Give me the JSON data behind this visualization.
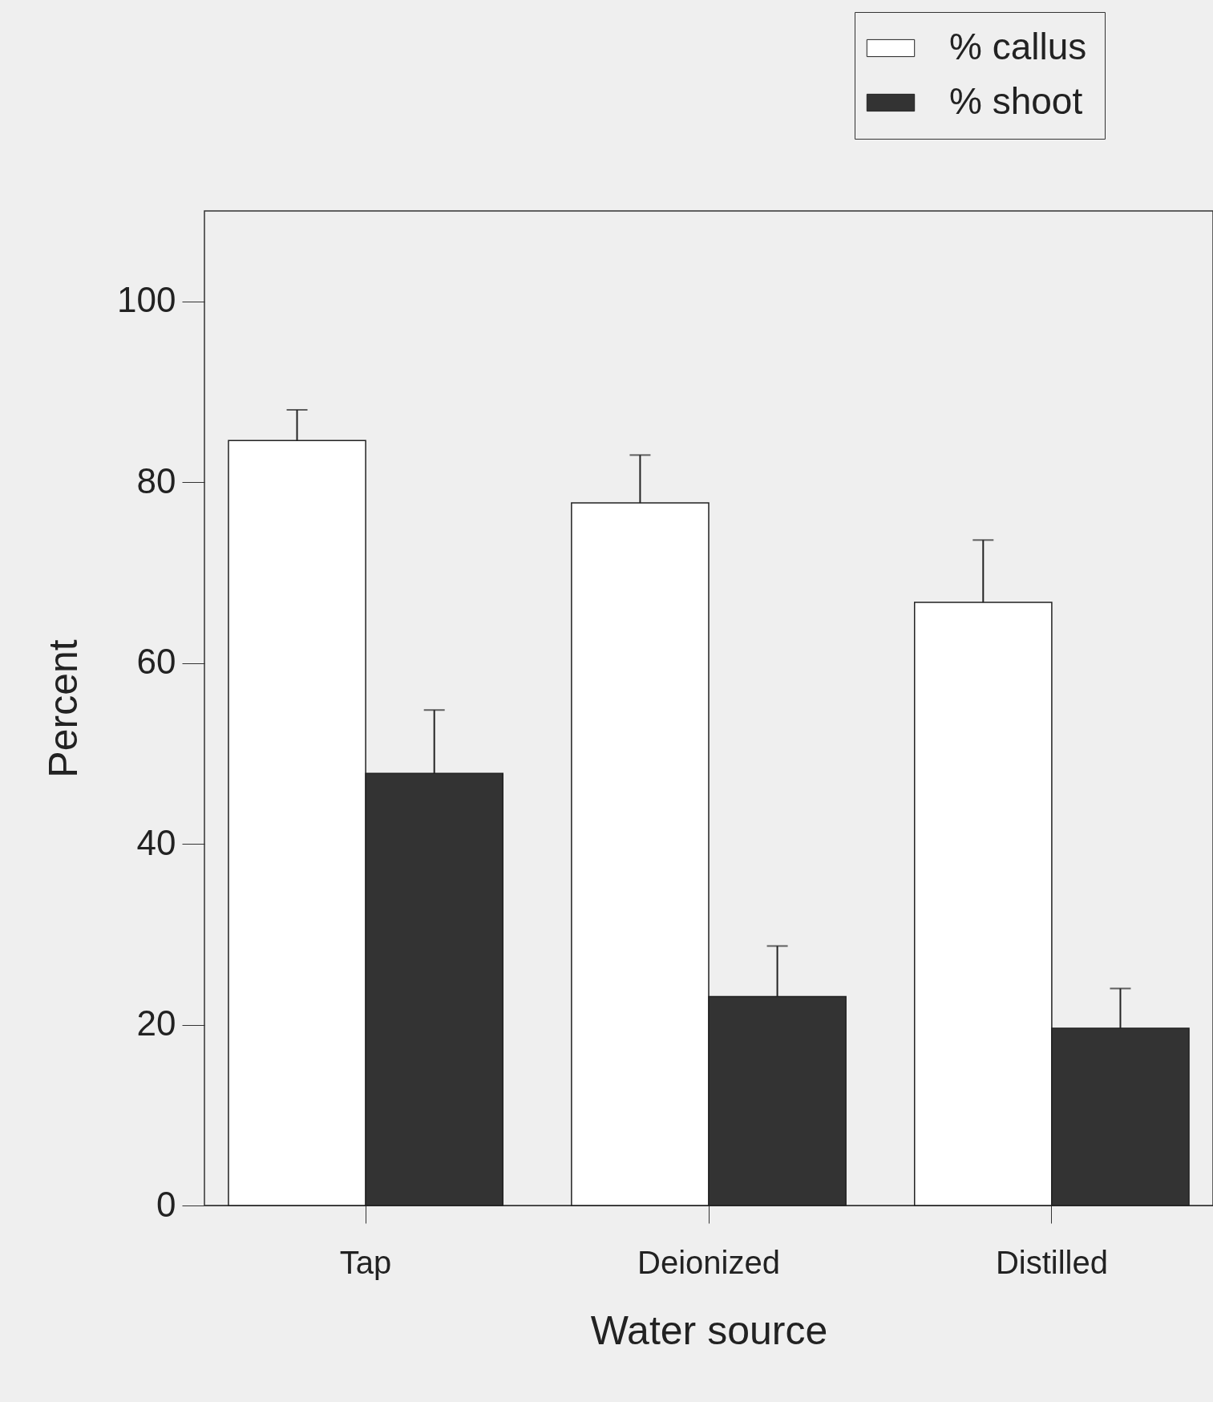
{
  "chart_data": {
    "type": "bar",
    "xlabel": "Water source",
    "ylabel": "Percent",
    "categories": [
      "Tap",
      "Deionized",
      "Distilled"
    ],
    "series": [
      {
        "name": "% callus",
        "color": "#ffffff",
        "values": [
          84.6,
          77.7,
          66.7
        ],
        "errors": [
          [
            84.6,
            88.0
          ],
          [
            77.7,
            83.0
          ],
          [
            66.7,
            73.6
          ]
        ]
      },
      {
        "name": "% shoot",
        "color": "#333333",
        "values": [
          47.8,
          23.1,
          19.6
        ],
        "errors": [
          [
            47.8,
            54.8
          ],
          [
            23.1,
            28.7
          ],
          [
            19.6,
            24.0
          ]
        ]
      }
    ],
    "ylim": [
      0,
      110
    ],
    "yticks": [
      0,
      20,
      40,
      60,
      80,
      100
    ],
    "grid": false,
    "legend": "top right"
  }
}
